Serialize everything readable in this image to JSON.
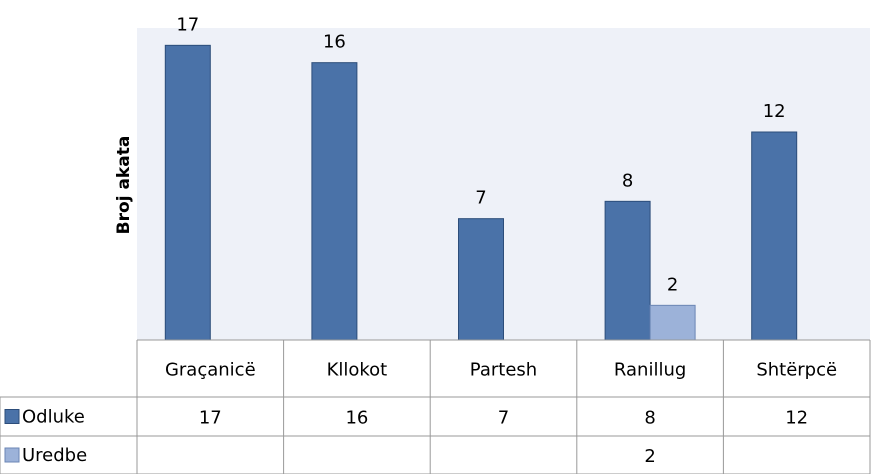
{
  "chart_data": {
    "type": "bar",
    "y_label": "Broj akata",
    "categories": [
      "Graçanicë",
      "Kllokot",
      "Partesh",
      "Ranillug",
      "Shtërpcë"
    ],
    "series": [
      {
        "name": "Odluke",
        "color": "#4a72a8",
        "values": [
          17,
          16,
          7,
          8,
          12
        ]
      },
      {
        "name": "Uredbe",
        "color": "#9cb2d9",
        "values": [
          null,
          null,
          null,
          2,
          null
        ]
      }
    ],
    "ylim": [
      0,
      18
    ]
  }
}
